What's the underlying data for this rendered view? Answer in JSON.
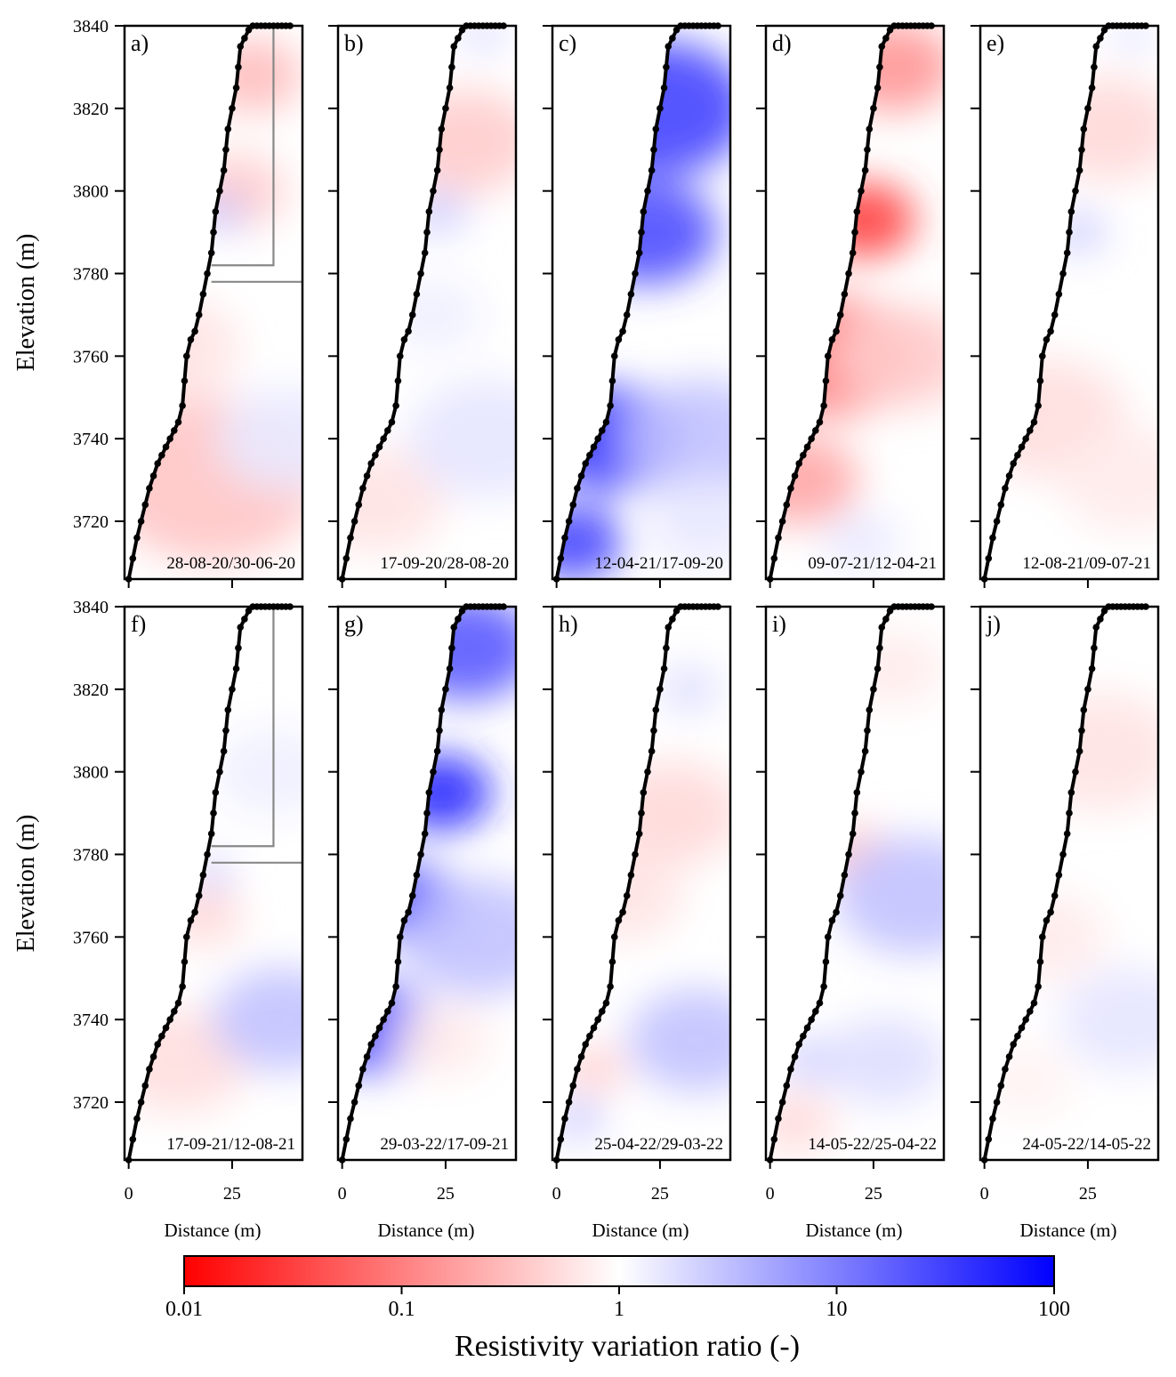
{
  "figure": {
    "colorbar": {
      "label": "Resistivity variation ratio (-)",
      "scale": "log",
      "range": [
        0.01,
        100
      ],
      "tick_labels": [
        "0.01",
        "0.1",
        "1",
        "10",
        "100"
      ],
      "tick_values": [
        0.01,
        0.1,
        1,
        10,
        100
      ],
      "colors": {
        "low": "#ff0000",
        "mid": "#ffffff",
        "high": "#0000ff"
      }
    },
    "axes": {
      "ylabel": "Elevation (m)",
      "xlabel": "Distance (m)",
      "yticks": [
        "3720",
        "3740",
        "3760",
        "3780",
        "3800",
        "3820",
        "3840"
      ],
      "ytick_values": [
        3720,
        3740,
        3760,
        3780,
        3800,
        3820,
        3840
      ],
      "xticks": [
        "0",
        "25"
      ],
      "xtick_values": [
        0,
        25
      ],
      "ylim": [
        3706,
        3840
      ],
      "xlim": [
        -1,
        42
      ]
    }
  },
  "chart_data": {
    "type": "heatmap",
    "surface_profile": {
      "distance": [
        0,
        1,
        2,
        3,
        4,
        5,
        6,
        7,
        8,
        9,
        10,
        11,
        12,
        13,
        13.5,
        14,
        15,
        16,
        17,
        18,
        19,
        20,
        20.5,
        21,
        22,
        23,
        23.5,
        24,
        25,
        26,
        26.5,
        27,
        28,
        29,
        30,
        31,
        32,
        33,
        34,
        35,
        36,
        37,
        38,
        39
      ],
      "elevation": [
        3706,
        3711,
        3716,
        3720,
        3724,
        3728,
        3731,
        3734,
        3736,
        3738,
        3740,
        3742,
        3744,
        3748,
        3754,
        3760,
        3764,
        3766,
        3770,
        3775,
        3780,
        3785,
        3790,
        3795,
        3800,
        3805,
        3810,
        3815,
        3820,
        3825,
        3830,
        3835,
        3837,
        3839,
        3840,
        3840,
        3840,
        3840,
        3840,
        3840,
        3840,
        3840,
        3840,
        3840
      ]
    },
    "panels": [
      {
        "label": "a)",
        "period": "28-08-20/30-06-20",
        "box": true,
        "field": [
          {
            "d": 30,
            "z": 3828,
            "ratio": 0.3,
            "r": 10
          },
          {
            "d": 26,
            "z": 3800,
            "ratio": 0.4,
            "r": 10
          },
          {
            "d": 22,
            "z": 3795,
            "ratio": 3,
            "r": 5
          },
          {
            "d": 20,
            "z": 3730,
            "ratio": 0.35,
            "r": 22
          },
          {
            "d": 10,
            "z": 3762,
            "ratio": 0.6,
            "r": 14
          },
          {
            "d": 38,
            "z": 3740,
            "ratio": 1.5,
            "r": 14
          }
        ]
      },
      {
        "label": "b)",
        "period": "17-09-20/28-08-20",
        "box": false,
        "field": [
          {
            "d": 30,
            "z": 3812,
            "ratio": 0.4,
            "r": 14
          },
          {
            "d": 23,
            "z": 3795,
            "ratio": 2.5,
            "r": 6
          },
          {
            "d": 34,
            "z": 3838,
            "ratio": 2.5,
            "r": 4
          },
          {
            "d": 8,
            "z": 3725,
            "ratio": 0.6,
            "r": 14
          },
          {
            "d": 35,
            "z": 3740,
            "ratio": 1.6,
            "r": 16
          },
          {
            "d": 22,
            "z": 3770,
            "ratio": 1.3,
            "r": 10
          }
        ]
      },
      {
        "label": "c)",
        "period": "12-04-21/17-09-20",
        "box": false,
        "field": [
          {
            "d": 25,
            "z": 3820,
            "ratio": 30,
            "r": 18
          },
          {
            "d": 22,
            "z": 3790,
            "ratio": 25,
            "r": 14
          },
          {
            "d": 14,
            "z": 3740,
            "ratio": 40,
            "r": 14
          },
          {
            "d": 4,
            "z": 3715,
            "ratio": 30,
            "r": 10
          },
          {
            "d": 35,
            "z": 3740,
            "ratio": 3,
            "r": 16
          },
          {
            "d": 36,
            "z": 3720,
            "ratio": 1.5,
            "r": 12
          }
        ]
      },
      {
        "label": "d)",
        "period": "09-07-21/12-04-21",
        "box": false,
        "field": [
          {
            "d": 23,
            "z": 3793,
            "ratio": 0.03,
            "r": 10
          },
          {
            "d": 30,
            "z": 3830,
            "ratio": 0.15,
            "r": 12
          },
          {
            "d": 16,
            "z": 3760,
            "ratio": 0.1,
            "r": 16
          },
          {
            "d": 7,
            "z": 3730,
            "ratio": 0.2,
            "r": 12
          },
          {
            "d": 32,
            "z": 3760,
            "ratio": 0.4,
            "r": 14
          },
          {
            "d": 22,
            "z": 3715,
            "ratio": 1.5,
            "r": 8
          }
        ]
      },
      {
        "label": "e)",
        "period": "12-08-21/09-07-21",
        "box": false,
        "field": [
          {
            "d": 30,
            "z": 3815,
            "ratio": 0.5,
            "r": 14
          },
          {
            "d": 23,
            "z": 3790,
            "ratio": 3,
            "r": 5
          },
          {
            "d": 36,
            "z": 3838,
            "ratio": 2,
            "r": 4
          },
          {
            "d": 15,
            "z": 3745,
            "ratio": 0.55,
            "r": 16
          },
          {
            "d": 35,
            "z": 3730,
            "ratio": 0.7,
            "r": 14
          }
        ]
      },
      {
        "label": "f)",
        "period": "17-09-21/12-08-21",
        "box": true,
        "field": [
          {
            "d": 20,
            "z": 3775,
            "ratio": 3,
            "r": 4
          },
          {
            "d": 18,
            "z": 3765,
            "ratio": 0.5,
            "r": 8
          },
          {
            "d": 12,
            "z": 3730,
            "ratio": 0.55,
            "r": 14
          },
          {
            "d": 37,
            "z": 3740,
            "ratio": 3,
            "r": 14
          },
          {
            "d": 35,
            "z": 3800,
            "ratio": 1.3,
            "r": 12
          }
        ]
      },
      {
        "label": "g)",
        "period": "29-03-22/17-09-21",
        "box": false,
        "field": [
          {
            "d": 24,
            "z": 3795,
            "ratio": 50,
            "r": 10
          },
          {
            "d": 30,
            "z": 3830,
            "ratio": 20,
            "r": 14
          },
          {
            "d": 17,
            "z": 3768,
            "ratio": 50,
            "r": 10
          },
          {
            "d": 8,
            "z": 3738,
            "ratio": 25,
            "r": 12
          },
          {
            "d": 33,
            "z": 3760,
            "ratio": 3,
            "r": 16
          },
          {
            "d": 24,
            "z": 3735,
            "ratio": 0.7,
            "r": 10
          }
        ]
      },
      {
        "label": "h)",
        "period": "25-04-22/29-03-22",
        "box": false,
        "field": [
          {
            "d": 28,
            "z": 3790,
            "ratio": 0.5,
            "r": 14
          },
          {
            "d": 32,
            "z": 3820,
            "ratio": 2,
            "r": 6
          },
          {
            "d": 16,
            "z": 3770,
            "ratio": 0.6,
            "r": 12
          },
          {
            "d": 34,
            "z": 3735,
            "ratio": 3,
            "r": 14
          },
          {
            "d": 5,
            "z": 3716,
            "ratio": 3,
            "r": 5
          },
          {
            "d": 9,
            "z": 3728,
            "ratio": 0.4,
            "r": 6
          }
        ]
      },
      {
        "label": "i)",
        "period": "14-05-22/25-04-22",
        "box": false,
        "field": [
          {
            "d": 20,
            "z": 3780,
            "ratio": 0.4,
            "r": 8
          },
          {
            "d": 35,
            "z": 3770,
            "ratio": 3,
            "r": 16
          },
          {
            "d": 30,
            "z": 3825,
            "ratio": 0.7,
            "r": 10
          },
          {
            "d": 10,
            "z": 3730,
            "ratio": 2.5,
            "r": 6
          },
          {
            "d": 6,
            "z": 3715,
            "ratio": 0.5,
            "r": 8
          },
          {
            "d": 28,
            "z": 3730,
            "ratio": 1.8,
            "r": 12
          }
        ]
      },
      {
        "label": "j)",
        "period": "24-05-22/14-05-22",
        "box": false,
        "field": [
          {
            "d": 28,
            "z": 3805,
            "ratio": 0.6,
            "r": 16
          },
          {
            "d": 15,
            "z": 3760,
            "ratio": 0.7,
            "r": 12
          },
          {
            "d": 35,
            "z": 3740,
            "ratio": 1.6,
            "r": 14
          },
          {
            "d": 10,
            "z": 3725,
            "ratio": 0.8,
            "r": 10
          }
        ]
      }
    ],
    "box_outline": {
      "distance": [
        20,
        35,
        35
      ],
      "elevation": [
        3782,
        3782,
        3840
      ],
      "line2": {
        "distance": [
          20,
          42
        ],
        "elevation": [
          3778,
          3778
        ]
      }
    }
  }
}
